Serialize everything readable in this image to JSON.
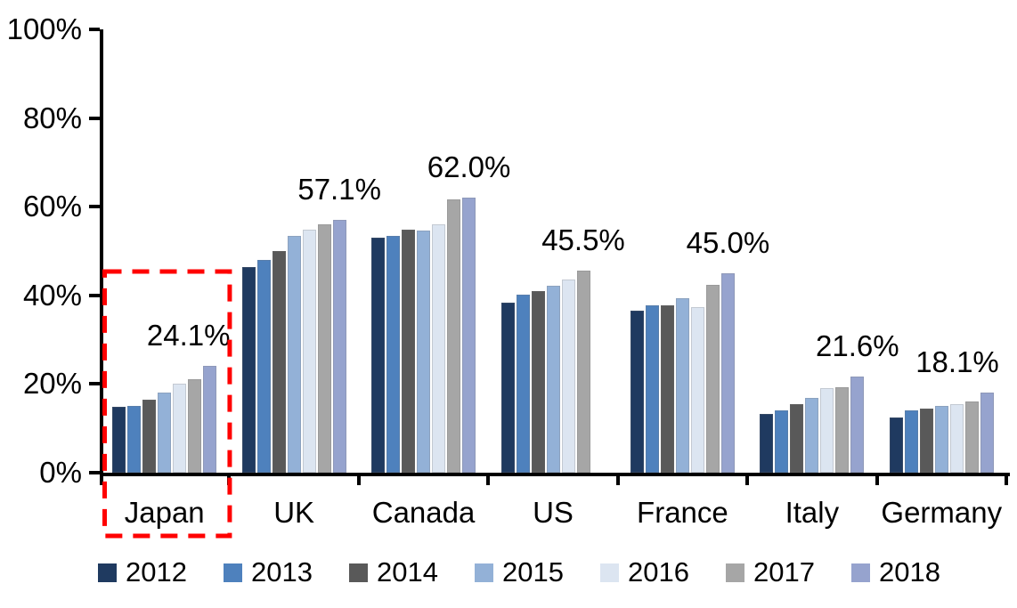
{
  "chart_data": {
    "type": "bar",
    "title": "",
    "xlabel": "",
    "ylabel": "",
    "ylim": [
      0,
      100
    ],
    "ytick_step": 20,
    "yticks": [
      "0%",
      "20%",
      "40%",
      "60%",
      "80%",
      "100%"
    ],
    "grid": false,
    "legend_position": "bottom",
    "categories": [
      "Japan",
      "UK",
      "Canada",
      "US",
      "France",
      "Italy",
      "Germany"
    ],
    "series": [
      {
        "name": "2012",
        "color": "#1F3A60",
        "values": [
          14.8,
          46.3,
          53.0,
          38.3,
          36.6,
          13.2,
          12.4
        ]
      },
      {
        "name": "2013",
        "color": "#4E81BD",
        "values": [
          15.0,
          48.0,
          53.4,
          40.2,
          37.8,
          14.0,
          14.0
        ]
      },
      {
        "name": "2014",
        "color": "#595959",
        "values": [
          16.5,
          50.0,
          54.8,
          41.0,
          37.8,
          15.4,
          14.4
        ]
      },
      {
        "name": "2015",
        "color": "#93B1D7",
        "values": [
          18.0,
          53.5,
          54.6,
          42.2,
          39.4,
          16.8,
          15.0
        ]
      },
      {
        "name": "2016",
        "color": "#DCE5F1",
        "values": [
          20.0,
          54.8,
          56.1,
          43.6,
          37.4,
          19.0,
          15.5
        ]
      },
      {
        "name": "2017",
        "color": "#A6A6A6",
        "values": [
          21.0,
          56.0,
          61.6,
          45.5,
          42.4,
          19.3,
          16.0
        ]
      },
      {
        "name": "2018",
        "color": "#96A3CE",
        "values": [
          24.1,
          57.1,
          62.0,
          null,
          45.0,
          21.6,
          18.1
        ]
      }
    ],
    "data_labels": [
      "24.1%",
      "57.1%",
      "62.0%",
      "45.5%",
      "45.0%",
      "21.6%",
      "18.1%"
    ],
    "annotations": {
      "highlight": {
        "category": "Japan",
        "style": "red-dashed-rectangle",
        "color": "#FF0000"
      }
    }
  }
}
